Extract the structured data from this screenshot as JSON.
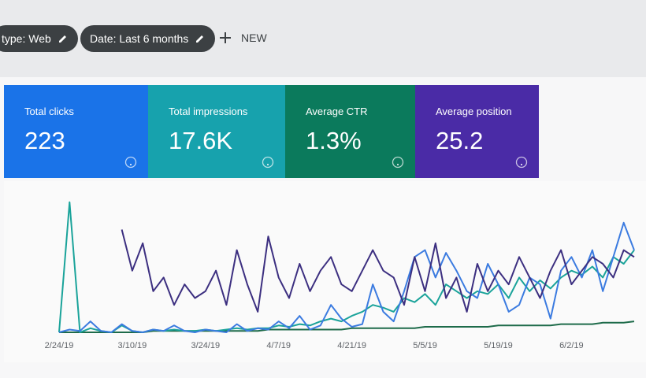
{
  "toolbar": {
    "chips": [
      "type: Web",
      "Date: Last 6 months"
    ],
    "new_button": "NEW"
  },
  "metrics": [
    {
      "label": "Total clicks",
      "value": "223",
      "color": "#1a73e8"
    },
    {
      "label": "Total impressions",
      "value": "17.6K",
      "color": "#17a2ad"
    },
    {
      "label": "Average CTR",
      "value": "1.3%",
      "color": "#0b7a5c"
    },
    {
      "label": "Average position",
      "value": "25.2",
      "color": "#4a2ba6"
    }
  ],
  "chart_data": {
    "type": "line",
    "categories": [
      "2/24/19",
      null,
      null,
      null,
      null,
      null,
      null,
      "3/10/19",
      null,
      null,
      null,
      null,
      null,
      null,
      "3/24/19",
      null,
      null,
      null,
      null,
      null,
      null,
      "4/7/19",
      null,
      null,
      null,
      null,
      null,
      null,
      "4/21/19",
      null,
      null,
      null,
      null,
      null,
      null,
      "5/5/19",
      null,
      null,
      null,
      null,
      null,
      null,
      "5/19/19",
      null,
      null,
      null,
      null,
      null,
      null,
      "6/2/19",
      null,
      null,
      null,
      null,
      null,
      null
    ],
    "ylim": [
      0,
      100
    ],
    "series": [
      {
        "color": "#3c2f80",
        "values": [
          null,
          null,
          null,
          null,
          null,
          null,
          75,
          45,
          65,
          30,
          40,
          20,
          35,
          25,
          30,
          45,
          20,
          60,
          35,
          15,
          70,
          40,
          25,
          50,
          30,
          45,
          55,
          35,
          30,
          45,
          60,
          45,
          40,
          20,
          55,
          30,
          65,
          25,
          40,
          15,
          50,
          30,
          45,
          35,
          55,
          40,
          25,
          45,
          60,
          35,
          45,
          55,
          50,
          40,
          60,
          55
        ]
      },
      {
        "color": "#3b7be0",
        "values": [
          0,
          2,
          1,
          8,
          1,
          0,
          6,
          1,
          0,
          2,
          1,
          5,
          1,
          0,
          2,
          1,
          0,
          6,
          1,
          3,
          2,
          8,
          3,
          12,
          2,
          5,
          20,
          10,
          4,
          6,
          35,
          15,
          8,
          30,
          55,
          60,
          40,
          58,
          45,
          30,
          25,
          50,
          35,
          15,
          20,
          40,
          35,
          10,
          45,
          55,
          40,
          60,
          30,
          55,
          80,
          60
        ]
      },
      {
        "color": "#1aa39a",
        "values": [
          0,
          95,
          0,
          3,
          1,
          0,
          5,
          1,
          0,
          2,
          1,
          2,
          1,
          1,
          2,
          1,
          2,
          3,
          2,
          3,
          3,
          5,
          4,
          6,
          5,
          8,
          10,
          8,
          12,
          15,
          20,
          18,
          15,
          25,
          22,
          28,
          20,
          35,
          30,
          25,
          30,
          28,
          35,
          25,
          40,
          30,
          38,
          32,
          40,
          45,
          42,
          48,
          40,
          55,
          50,
          60
        ]
      },
      {
        "color": "#1e6b4a",
        "values": [
          0,
          0,
          0,
          0,
          0,
          0,
          0,
          0,
          0,
          1,
          1,
          1,
          1,
          1,
          1,
          1,
          1,
          1,
          1,
          1,
          2,
          2,
          2,
          2,
          2,
          2,
          2,
          2,
          3,
          3,
          3,
          3,
          3,
          3,
          3,
          4,
          4,
          4,
          4,
          4,
          4,
          4,
          5,
          5,
          5,
          5,
          5,
          5,
          6,
          6,
          6,
          6,
          7,
          7,
          7,
          8
        ]
      }
    ]
  }
}
